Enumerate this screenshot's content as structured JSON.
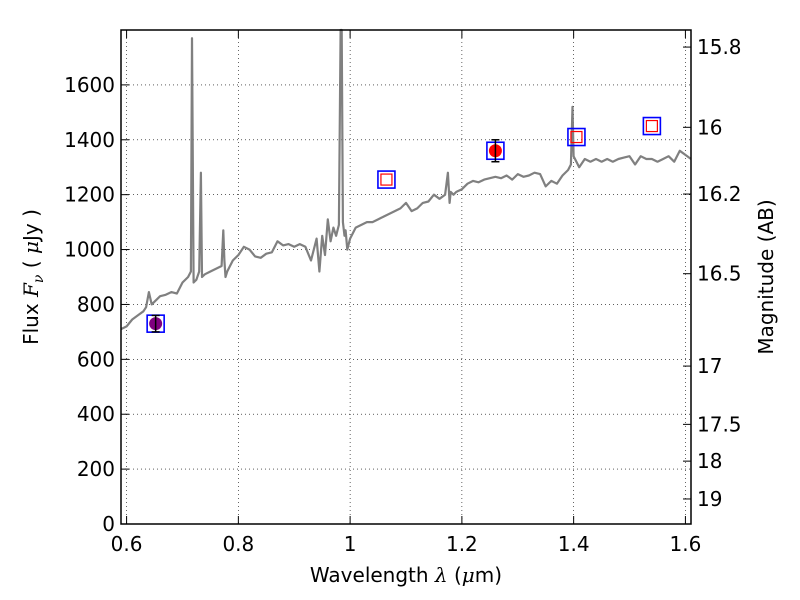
{
  "chart_data": {
    "type": "line",
    "xlabel": {
      "prefix": "Wavelength  ",
      "symbol": "λ",
      "unit_open": " (",
      "unit_mu": "μ",
      "unit_rest": "m)"
    },
    "ylabel": {
      "prefix": "Flux  ",
      "symbol": "F",
      "sub": "ν",
      "unit_open": "  ( ",
      "unit_mu": "μ",
      "unit_rest": "Jy )"
    },
    "y2label": "Magnitude (AB)",
    "xlim": [
      0.59,
      1.61
    ],
    "ylim": [
      0,
      1800
    ],
    "grid": true,
    "x_ticks": [
      {
        "value": 0.6,
        "label": "0.6"
      },
      {
        "value": 0.8,
        "label": "0.8"
      },
      {
        "value": 1.0,
        "label": "1"
      },
      {
        "value": 1.2,
        "label": "1.2"
      },
      {
        "value": 1.4,
        "label": "1.4"
      },
      {
        "value": 1.6,
        "label": "1.6"
      }
    ],
    "y_ticks": [
      {
        "value": 0,
        "label": "0"
      },
      {
        "value": 200,
        "label": "200"
      },
      {
        "value": 400,
        "label": "400"
      },
      {
        "value": 600,
        "label": "600"
      },
      {
        "value": 800,
        "label": "800"
      },
      {
        "value": 1000,
        "label": "1000"
      },
      {
        "value": 1200,
        "label": "1200"
      },
      {
        "value": 1400,
        "label": "1400"
      },
      {
        "value": 1600,
        "label": "1600"
      }
    ],
    "y2_ticks": [
      {
        "mag": 15.8,
        "label": "15.8"
      },
      {
        "mag": 16.0,
        "label": "16"
      },
      {
        "mag": 16.2,
        "label": "16.2"
      },
      {
        "mag": 16.5,
        "label": "16.5"
      },
      {
        "mag": 17.0,
        "label": "17"
      },
      {
        "mag": 17.5,
        "label": "17.5"
      },
      {
        "mag": 18.0,
        "label": "18"
      },
      {
        "mag": 19.0,
        "label": "19"
      }
    ],
    "spectrum": {
      "color": "#808080",
      "x": [
        0.59,
        0.6,
        0.61,
        0.62,
        0.63,
        0.635,
        0.64,
        0.645,
        0.65,
        0.66,
        0.67,
        0.68,
        0.69,
        0.695,
        0.7,
        0.71,
        0.715,
        0.717,
        0.72,
        0.725,
        0.73,
        0.733,
        0.735,
        0.74,
        0.75,
        0.76,
        0.77,
        0.773,
        0.775,
        0.777,
        0.78,
        0.79,
        0.8,
        0.81,
        0.82,
        0.83,
        0.84,
        0.85,
        0.86,
        0.87,
        0.88,
        0.89,
        0.9,
        0.91,
        0.92,
        0.93,
        0.94,
        0.945,
        0.95,
        0.955,
        0.96,
        0.965,
        0.97,
        0.975,
        0.98,
        0.983,
        0.985,
        0.987,
        0.99,
        0.992,
        0.995,
        1.0,
        1.01,
        1.02,
        1.03,
        1.04,
        1.05,
        1.06,
        1.07,
        1.08,
        1.09,
        1.1,
        1.11,
        1.12,
        1.13,
        1.14,
        1.15,
        1.16,
        1.17,
        1.175,
        1.178,
        1.18,
        1.185,
        1.19,
        1.2,
        1.21,
        1.22,
        1.23,
        1.24,
        1.25,
        1.26,
        1.27,
        1.28,
        1.29,
        1.3,
        1.31,
        1.32,
        1.33,
        1.34,
        1.35,
        1.36,
        1.37,
        1.38,
        1.39,
        1.395,
        1.398,
        1.4,
        1.41,
        1.42,
        1.43,
        1.44,
        1.45,
        1.46,
        1.47,
        1.48,
        1.49,
        1.5,
        1.51,
        1.52,
        1.53,
        1.54,
        1.55,
        1.56,
        1.57,
        1.58,
        1.59,
        1.6,
        1.61
      ],
      "y": [
        710,
        720,
        745,
        760,
        775,
        790,
        845,
        800,
        810,
        830,
        835,
        845,
        840,
        860,
        880,
        900,
        920,
        1770,
        880,
        890,
        920,
        1280,
        900,
        910,
        920,
        930,
        940,
        1070,
        960,
        900,
        920,
        960,
        980,
        1010,
        1000,
        975,
        970,
        985,
        990,
        1030,
        1015,
        1020,
        1010,
        1020,
        1010,
        960,
        1040,
        920,
        1050,
        980,
        1110,
        1030,
        1080,
        1050,
        1090,
        1800,
        1800,
        1100,
        1050,
        1070,
        1000,
        1040,
        1080,
        1090,
        1100,
        1100,
        1110,
        1120,
        1130,
        1140,
        1150,
        1170,
        1140,
        1150,
        1170,
        1175,
        1200,
        1185,
        1200,
        1280,
        1170,
        1210,
        1200,
        1210,
        1220,
        1240,
        1250,
        1245,
        1255,
        1260,
        1265,
        1260,
        1270,
        1255,
        1275,
        1265,
        1270,
        1280,
        1275,
        1230,
        1250,
        1240,
        1270,
        1290,
        1310,
        1520,
        1340,
        1300,
        1330,
        1320,
        1330,
        1320,
        1330,
        1320,
        1330,
        1335,
        1340,
        1310,
        1340,
        1330,
        1330,
        1320,
        1330,
        1340,
        1320,
        1360,
        1345,
        1330
      ]
    },
    "points": [
      {
        "x": 0.652,
        "y": 730,
        "err": 30,
        "marker": "circle",
        "color": "#800080",
        "box": true,
        "open_square": false
      },
      {
        "x": 1.065,
        "y": 1255,
        "err": 0,
        "marker": "none",
        "color": "#ff0000",
        "box": true,
        "open_square": true
      },
      {
        "x": 1.26,
        "y": 1360,
        "err": 40,
        "marker": "circle",
        "color": "#ff0000",
        "box": true,
        "open_square": false
      },
      {
        "x": 1.405,
        "y": 1410,
        "err": 0,
        "marker": "none",
        "color": "#ff0000",
        "box": true,
        "open_square": true
      },
      {
        "x": 1.54,
        "y": 1450,
        "err": 0,
        "marker": "none",
        "color": "#ff0000",
        "box": true,
        "open_square": true
      }
    ],
    "box_color": "#0000ff"
  }
}
